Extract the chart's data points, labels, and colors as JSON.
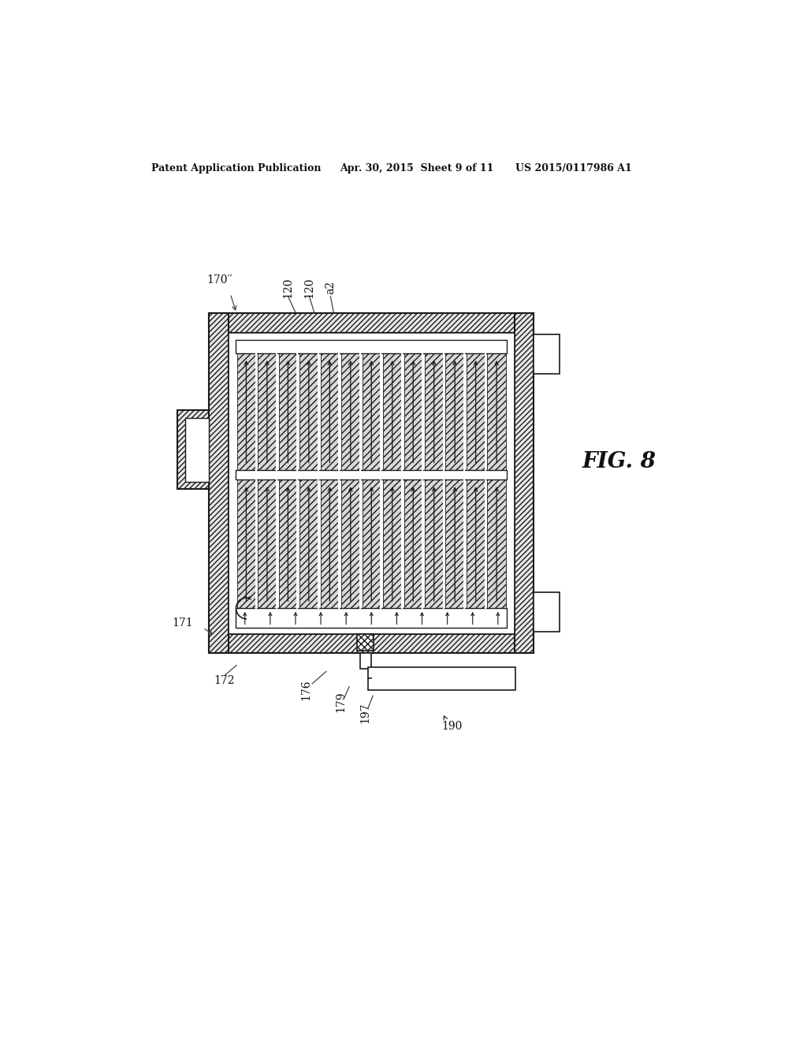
{
  "bg_color": "#ffffff",
  "header_left": "Patent Application Publication",
  "header_center": "Apr. 30, 2015  Sheet 9 of 11",
  "header_right": "US 2015/0117986 A1",
  "fig_label": "FIG. 8",
  "label_170": "170′′",
  "label_120a": "120",
  "label_120b": "120",
  "label_a2": "a2",
  "label_171": "171",
  "label_172": "172",
  "label_176": "176",
  "label_179": "179",
  "label_197": "197",
  "label_190": "190",
  "line_color": "#1a1a1a",
  "arrow_color": "#1a1a1a"
}
